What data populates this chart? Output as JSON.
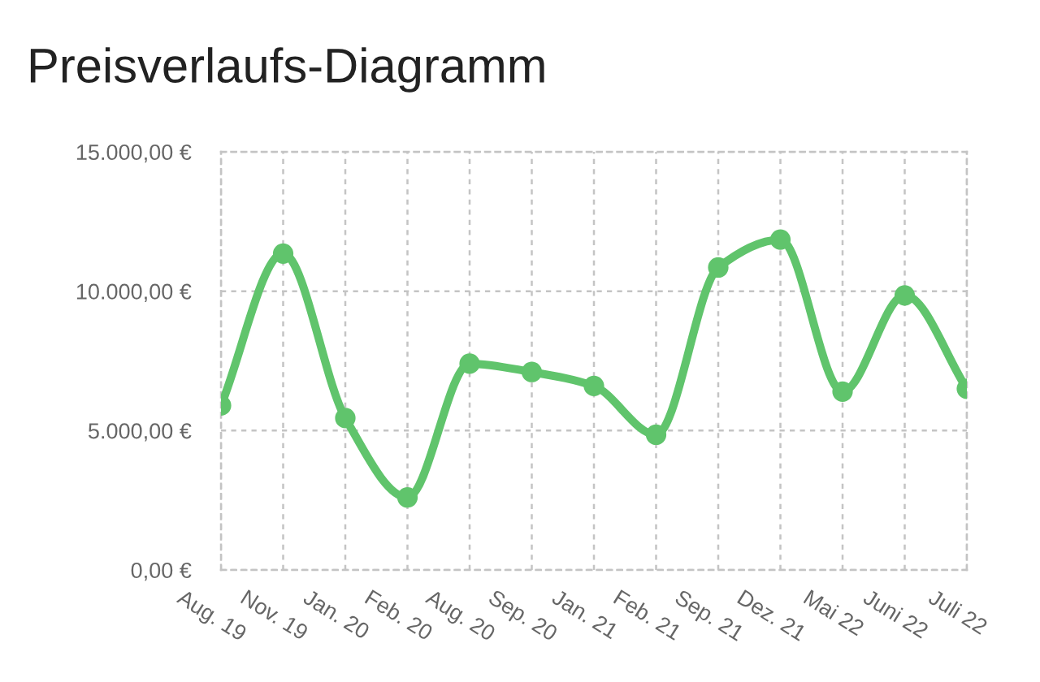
{
  "chart_data": {
    "type": "line",
    "title": "Preisverlaufs-Diagramm",
    "categories": [
      "Aug. 19",
      "Nov. 19",
      "Jan. 20",
      "Feb. 20",
      "Aug. 20",
      "Sep. 20",
      "Jan. 21",
      "Feb. 21",
      "Sep. 21",
      "Dez. 21",
      "Mai 22",
      "Juni 22",
      "Juli 22"
    ],
    "series": [
      {
        "color": "#60c46c",
        "values": [
          5900,
          11350,
          5450,
          2600,
          7400,
          7100,
          6600,
          4850,
          10850,
          11850,
          6400,
          9850,
          6500
        ]
      }
    ],
    "ylim": [
      0,
      15000
    ],
    "yticks": [
      {
        "value": 0,
        "label": "0,00 €"
      },
      {
        "value": 5000,
        "label": "5.000,00 €"
      },
      {
        "value": 10000,
        "label": "10.000,00 €"
      },
      {
        "value": 15000,
        "label": "15.000,00 €"
      }
    ],
    "grid": true,
    "marker": "circle",
    "line_style": "solid"
  }
}
